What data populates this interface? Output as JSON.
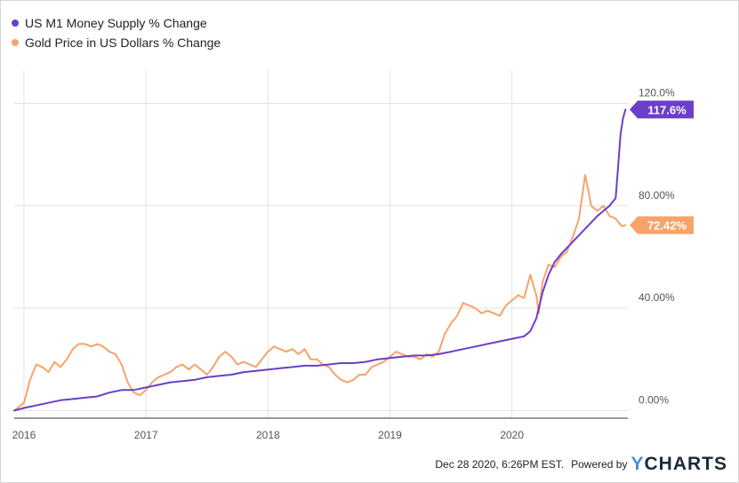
{
  "colors": {
    "m1": "#6b3fc9",
    "gold": "#f7a36a",
    "grid": "#e3e3e3",
    "axis": "#333333",
    "tick": "#555555"
  },
  "legend": {
    "m1": "US M1 Money Supply % Change",
    "gold": "Gold Price in US Dollars % Change"
  },
  "footer": {
    "timestamp": "Dec 28 2020, 6:26PM EST.",
    "powered": "Powered by",
    "brand_y": "Y",
    "brand_rest": "CHARTS"
  },
  "chart_data": {
    "type": "line",
    "x_range": [
      2015.92,
      2020.95
    ],
    "ylim": [
      -3,
      133
    ],
    "grid": true,
    "legend_position": "top-left",
    "x_ticks": [
      {
        "label": "2016",
        "value": 2016.0
      },
      {
        "label": "2017",
        "value": 2017.0
      },
      {
        "label": "2018",
        "value": 2018.0
      },
      {
        "label": "2019",
        "value": 2019.0
      },
      {
        "label": "2020",
        "value": 2020.0
      }
    ],
    "y_ticks": [
      {
        "label": "0.00%",
        "value": 0
      },
      {
        "label": "40.00%",
        "value": 40
      },
      {
        "label": "80.00%",
        "value": 80
      },
      {
        "label": "120.0%",
        "value": 120
      }
    ],
    "series": [
      {
        "name": "US M1 Money Supply % Change",
        "key": "m1",
        "end_label": "117.6%",
        "points": [
          [
            2015.92,
            0
          ],
          [
            2016.0,
            1
          ],
          [
            2016.1,
            2
          ],
          [
            2016.2,
            3
          ],
          [
            2016.3,
            4
          ],
          [
            2016.4,
            4.5
          ],
          [
            2016.5,
            5
          ],
          [
            2016.6,
            5.5
          ],
          [
            2016.7,
            7
          ],
          [
            2016.8,
            8
          ],
          [
            2016.9,
            8
          ],
          [
            2017.0,
            9
          ],
          [
            2017.1,
            10
          ],
          [
            2017.2,
            11
          ],
          [
            2017.3,
            11.5
          ],
          [
            2017.4,
            12
          ],
          [
            2017.5,
            13
          ],
          [
            2017.6,
            13.5
          ],
          [
            2017.7,
            14
          ],
          [
            2017.8,
            15
          ],
          [
            2017.9,
            15.5
          ],
          [
            2018.0,
            16
          ],
          [
            2018.1,
            16.5
          ],
          [
            2018.2,
            17
          ],
          [
            2018.3,
            17.5
          ],
          [
            2018.4,
            17.5
          ],
          [
            2018.5,
            18
          ],
          [
            2018.6,
            18.5
          ],
          [
            2018.7,
            18.5
          ],
          [
            2018.8,
            19
          ],
          [
            2018.9,
            20
          ],
          [
            2019.0,
            20.5
          ],
          [
            2019.1,
            21
          ],
          [
            2019.2,
            21.5
          ],
          [
            2019.3,
            21.5
          ],
          [
            2019.4,
            22
          ],
          [
            2019.5,
            23
          ],
          [
            2019.6,
            24
          ],
          [
            2019.7,
            25
          ],
          [
            2019.8,
            26
          ],
          [
            2019.9,
            27
          ],
          [
            2020.0,
            28
          ],
          [
            2020.1,
            29
          ],
          [
            2020.15,
            31
          ],
          [
            2020.2,
            36
          ],
          [
            2020.25,
            46
          ],
          [
            2020.3,
            53
          ],
          [
            2020.35,
            58
          ],
          [
            2020.4,
            61
          ],
          [
            2020.5,
            66
          ],
          [
            2020.6,
            71
          ],
          [
            2020.7,
            76
          ],
          [
            2020.75,
            78
          ],
          [
            2020.8,
            80
          ],
          [
            2020.85,
            83
          ],
          [
            2020.87,
            95
          ],
          [
            2020.89,
            108
          ],
          [
            2020.91,
            114
          ],
          [
            2020.93,
            117.6
          ]
        ]
      },
      {
        "name": "Gold Price in US Dollars % Change",
        "key": "gold",
        "end_label": "72.42%",
        "points": [
          [
            2015.92,
            0
          ],
          [
            2016.0,
            3
          ],
          [
            2016.05,
            12
          ],
          [
            2016.1,
            18
          ],
          [
            2016.15,
            17
          ],
          [
            2016.2,
            15
          ],
          [
            2016.25,
            19
          ],
          [
            2016.3,
            17
          ],
          [
            2016.35,
            20
          ],
          [
            2016.4,
            24
          ],
          [
            2016.45,
            26
          ],
          [
            2016.5,
            26
          ],
          [
            2016.55,
            25
          ],
          [
            2016.6,
            26
          ],
          [
            2016.65,
            25
          ],
          [
            2016.7,
            23
          ],
          [
            2016.75,
            22
          ],
          [
            2016.8,
            18
          ],
          [
            2016.85,
            11
          ],
          [
            2016.9,
            7
          ],
          [
            2016.95,
            6
          ],
          [
            2017.0,
            8
          ],
          [
            2017.05,
            11
          ],
          [
            2017.1,
            13
          ],
          [
            2017.15,
            14
          ],
          [
            2017.2,
            15
          ],
          [
            2017.25,
            17
          ],
          [
            2017.3,
            18
          ],
          [
            2017.35,
            16
          ],
          [
            2017.4,
            18
          ],
          [
            2017.45,
            16
          ],
          [
            2017.5,
            14
          ],
          [
            2017.55,
            17
          ],
          [
            2017.6,
            21
          ],
          [
            2017.65,
            23
          ],
          [
            2017.7,
            21
          ],
          [
            2017.75,
            18
          ],
          [
            2017.8,
            19
          ],
          [
            2017.85,
            18
          ],
          [
            2017.9,
            17
          ],
          [
            2017.95,
            20
          ],
          [
            2018.0,
            23
          ],
          [
            2018.05,
            25
          ],
          [
            2018.1,
            24
          ],
          [
            2018.15,
            23
          ],
          [
            2018.2,
            24
          ],
          [
            2018.25,
            22
          ],
          [
            2018.3,
            24
          ],
          [
            2018.35,
            20
          ],
          [
            2018.4,
            20
          ],
          [
            2018.45,
            18
          ],
          [
            2018.5,
            17
          ],
          [
            2018.55,
            14
          ],
          [
            2018.6,
            12
          ],
          [
            2018.65,
            11
          ],
          [
            2018.7,
            12
          ],
          [
            2018.75,
            14
          ],
          [
            2018.8,
            14
          ],
          [
            2018.85,
            17
          ],
          [
            2018.9,
            18
          ],
          [
            2018.95,
            19
          ],
          [
            2019.0,
            21
          ],
          [
            2019.05,
            23
          ],
          [
            2019.1,
            22
          ],
          [
            2019.15,
            21
          ],
          [
            2019.2,
            21
          ],
          [
            2019.25,
            20
          ],
          [
            2019.3,
            22
          ],
          [
            2019.35,
            21
          ],
          [
            2019.4,
            23
          ],
          [
            2019.45,
            30
          ],
          [
            2019.5,
            34
          ],
          [
            2019.55,
            37
          ],
          [
            2019.6,
            42
          ],
          [
            2019.65,
            41
          ],
          [
            2019.7,
            40
          ],
          [
            2019.75,
            38
          ],
          [
            2019.8,
            39
          ],
          [
            2019.85,
            38
          ],
          [
            2019.9,
            37
          ],
          [
            2019.95,
            41
          ],
          [
            2020.0,
            43
          ],
          [
            2020.05,
            45
          ],
          [
            2020.1,
            44
          ],
          [
            2020.15,
            53
          ],
          [
            2020.2,
            45
          ],
          [
            2020.22,
            38
          ],
          [
            2020.25,
            50
          ],
          [
            2020.3,
            57
          ],
          [
            2020.35,
            56
          ],
          [
            2020.4,
            60
          ],
          [
            2020.45,
            62
          ],
          [
            2020.5,
            68
          ],
          [
            2020.55,
            75
          ],
          [
            2020.6,
            92
          ],
          [
            2020.63,
            85
          ],
          [
            2020.65,
            80
          ],
          [
            2020.7,
            78
          ],
          [
            2020.75,
            80
          ],
          [
            2020.8,
            76
          ],
          [
            2020.85,
            75
          ],
          [
            2020.9,
            72
          ],
          [
            2020.93,
            72.42
          ]
        ]
      }
    ]
  }
}
